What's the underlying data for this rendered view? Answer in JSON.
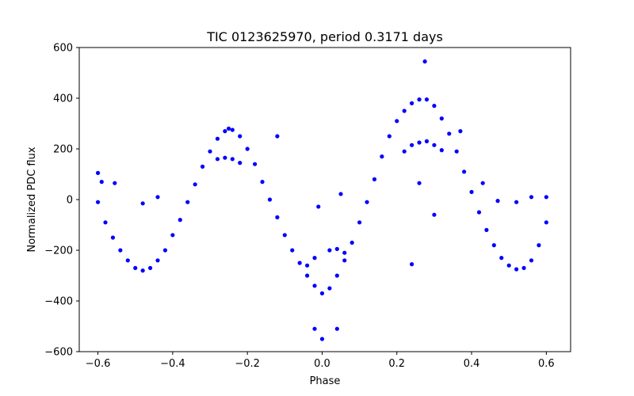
{
  "chart_data": {
    "type": "scatter",
    "title": "TIC 0123625970, period 0.3171 days",
    "xlabel": "Phase",
    "ylabel": "Normalized PDC flux",
    "xlim": [
      -0.65,
      0.665
    ],
    "ylim": [
      -600,
      600
    ],
    "xticks": [
      -0.6,
      -0.4,
      -0.2,
      0.0,
      0.2,
      0.4,
      0.6
    ],
    "xtick_labels": [
      "−0.6",
      "−0.4",
      "−0.2",
      "0.0",
      "0.2",
      "0.4",
      "0.6"
    ],
    "yticks": [
      -600,
      -400,
      -200,
      0,
      200,
      400,
      600
    ],
    "ytick_labels": [
      "−600",
      "−400",
      "−200",
      "0",
      "200",
      "400",
      "600"
    ],
    "grid": false,
    "marker_color": "#0000ff",
    "series": [
      {
        "points": [
          [
            -0.6,
            -10
          ],
          [
            -0.58,
            -90
          ],
          [
            -0.56,
            -150
          ],
          [
            -0.54,
            -200
          ],
          [
            -0.52,
            -240
          ],
          [
            -0.5,
            -270
          ],
          [
            -0.48,
            -280
          ],
          [
            -0.46,
            -270
          ],
          [
            -0.44,
            -240
          ],
          [
            -0.42,
            -200
          ],
          [
            -0.4,
            -140
          ],
          [
            -0.38,
            -80
          ],
          [
            -0.36,
            -10
          ],
          [
            -0.34,
            60
          ],
          [
            -0.32,
            130
          ],
          [
            -0.3,
            190
          ],
          [
            -0.28,
            240
          ],
          [
            -0.26,
            270
          ],
          [
            -0.25,
            280
          ],
          [
            -0.24,
            275
          ],
          [
            -0.22,
            250
          ],
          [
            -0.2,
            200
          ],
          [
            -0.18,
            140
          ],
          [
            -0.16,
            70
          ],
          [
            -0.14,
            0
          ],
          [
            -0.12,
            -70
          ],
          [
            -0.1,
            -140
          ],
          [
            -0.08,
            -200
          ],
          [
            -0.06,
            -250
          ],
          [
            -0.04,
            -300
          ],
          [
            -0.02,
            -340
          ],
          [
            0.0,
            -370
          ],
          [
            0.02,
            -350
          ],
          [
            0.04,
            -300
          ],
          [
            0.06,
            -240
          ],
          [
            0.08,
            -170
          ],
          [
            0.1,
            -90
          ],
          [
            0.12,
            -10
          ],
          [
            0.14,
            80
          ],
          [
            0.16,
            170
          ],
          [
            0.18,
            250
          ],
          [
            0.2,
            310
          ],
          [
            0.22,
            350
          ],
          [
            0.24,
            380
          ],
          [
            0.26,
            395
          ],
          [
            0.28,
            395
          ],
          [
            0.3,
            370
          ],
          [
            0.32,
            320
          ],
          [
            0.34,
            260
          ],
          [
            0.36,
            190
          ],
          [
            0.38,
            110
          ],
          [
            0.4,
            30
          ],
          [
            0.42,
            -50
          ],
          [
            0.44,
            -120
          ],
          [
            0.46,
            -180
          ],
          [
            0.48,
            -230
          ],
          [
            0.5,
            -260
          ],
          [
            0.52,
            -275
          ],
          [
            0.54,
            -270
          ],
          [
            0.56,
            -240
          ],
          [
            0.58,
            -180
          ],
          [
            0.6,
            -90
          ],
          [
            -0.28,
            160
          ],
          [
            -0.26,
            165
          ],
          [
            -0.24,
            160
          ],
          [
            -0.22,
            145
          ],
          [
            0.22,
            190
          ],
          [
            0.24,
            215
          ],
          [
            0.26,
            225
          ],
          [
            0.28,
            230
          ],
          [
            0.3,
            215
          ],
          [
            0.32,
            195
          ],
          [
            0.02,
            -200
          ],
          [
            0.04,
            -195
          ],
          [
            0.06,
            -210
          ],
          [
            -0.04,
            -260
          ],
          [
            -0.02,
            -230
          ],
          [
            -0.6,
            105
          ],
          [
            -0.59,
            70
          ],
          [
            -0.555,
            65
          ],
          [
            -0.48,
            -15
          ],
          [
            -0.44,
            10
          ],
          [
            -0.12,
            250
          ],
          [
            -0.01,
            -28
          ],
          [
            0.05,
            22
          ],
          [
            0.24,
            -255
          ],
          [
            0.26,
            65
          ],
          [
            0.3,
            -60
          ],
          [
            0.37,
            270
          ],
          [
            0.43,
            65
          ],
          [
            0.47,
            -5
          ],
          [
            0.52,
            -10
          ],
          [
            0.56,
            10
          ],
          [
            0.6,
            10
          ],
          [
            0.275,
            545
          ],
          [
            0.0,
            -550
          ],
          [
            0.04,
            -510
          ],
          [
            -0.02,
            -510
          ]
        ]
      }
    ]
  }
}
